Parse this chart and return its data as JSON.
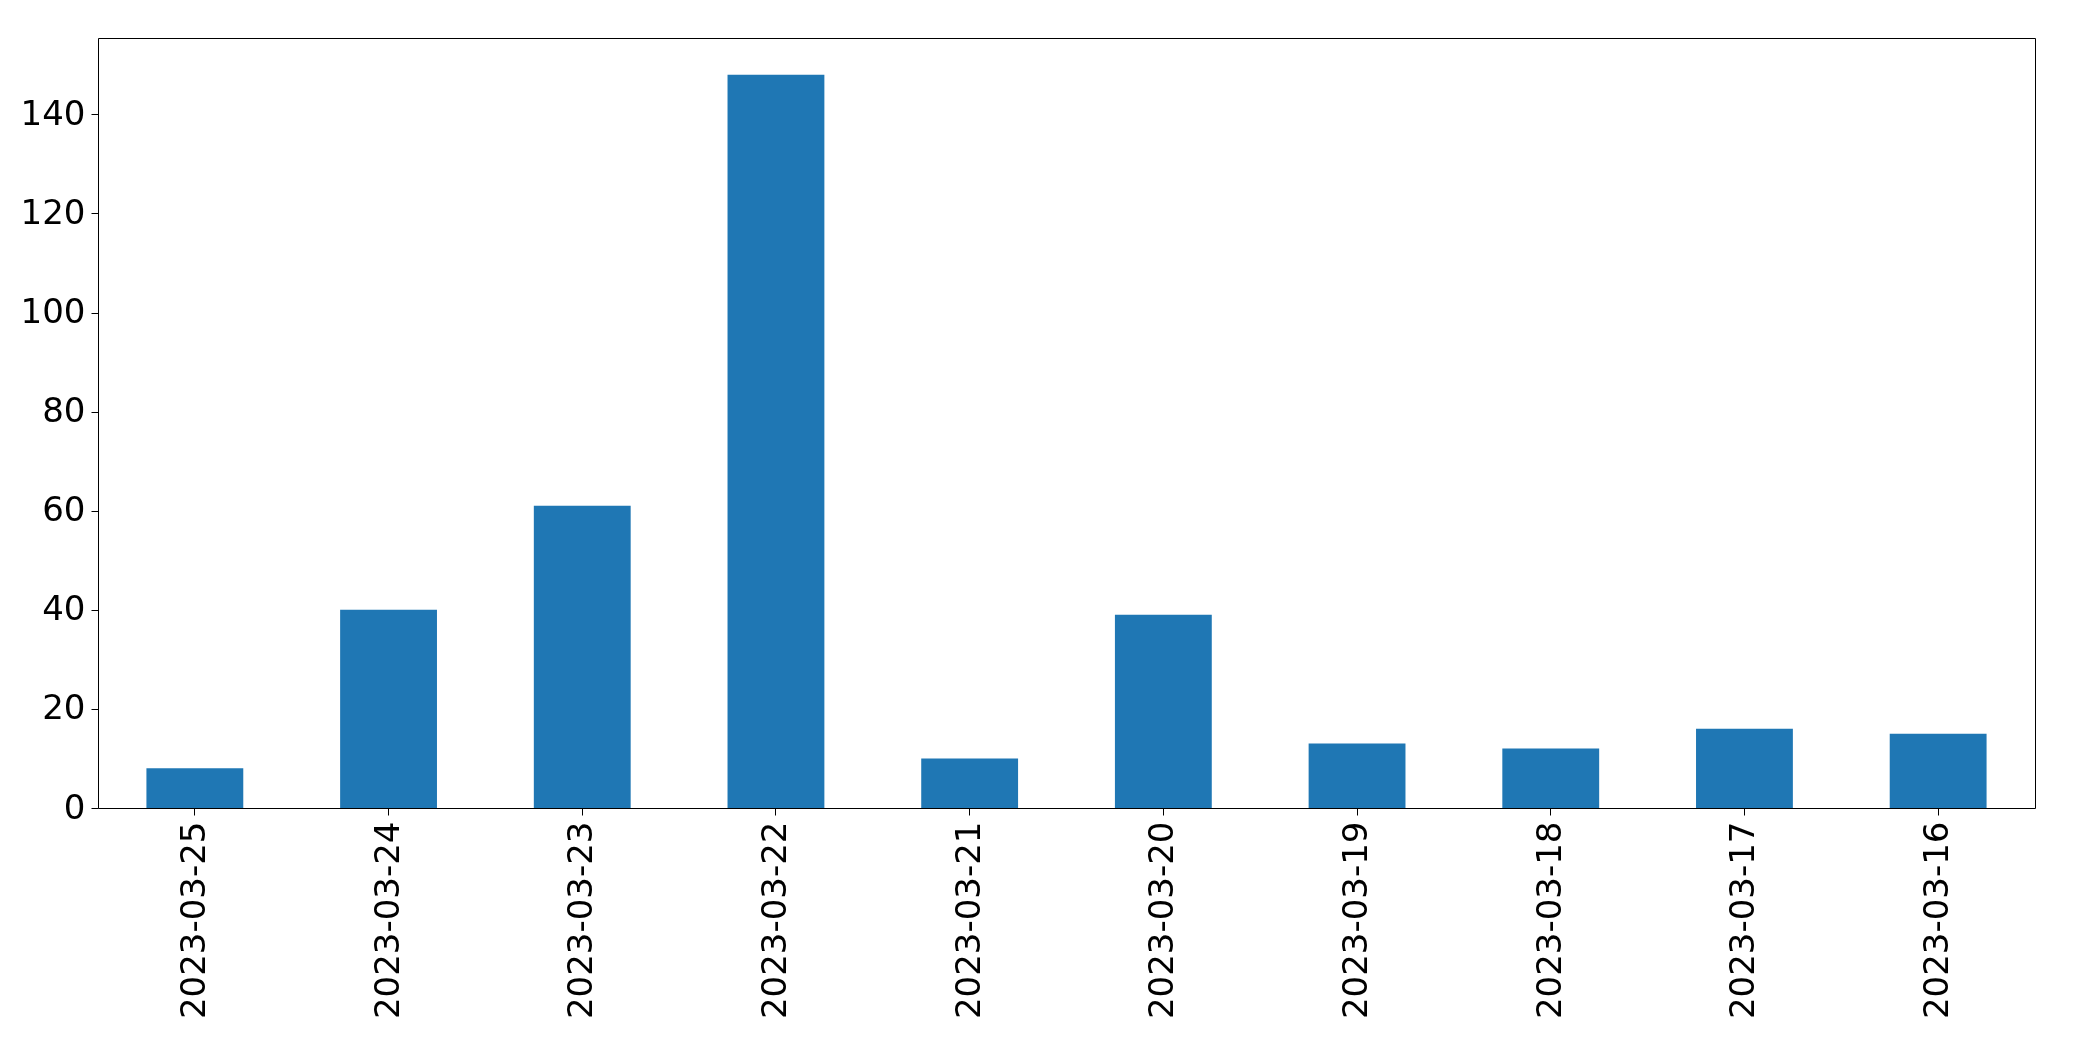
{
  "chart_data": {
    "type": "bar",
    "categories": [
      "2023-03-25",
      "2023-03-24",
      "2023-03-23",
      "2023-03-22",
      "2023-03-21",
      "2023-03-20",
      "2023-03-19",
      "2023-03-18",
      "2023-03-17",
      "2023-03-16"
    ],
    "values": [
      8,
      40,
      61,
      148,
      10,
      39,
      13,
      12,
      16,
      15
    ],
    "color": "#1f77b4",
    "ylim": [
      0,
      155.4
    ],
    "yticks": [
      0,
      20,
      40,
      60,
      80,
      100,
      120,
      140
    ],
    "grid": false
  }
}
